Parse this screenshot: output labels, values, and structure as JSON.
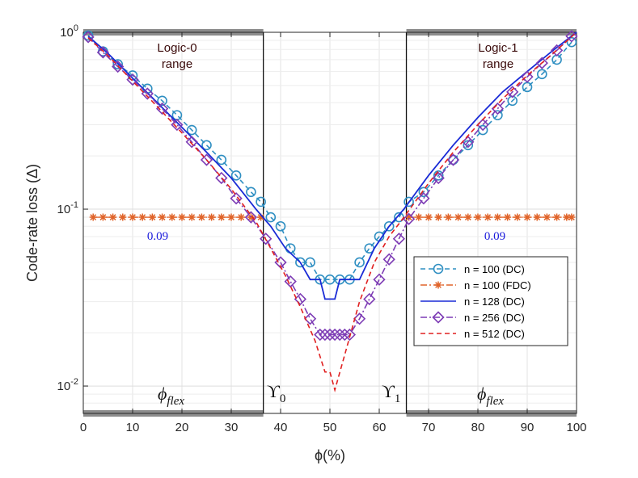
{
  "chart_data": {
    "type": "line",
    "xlabel": "ϕ(%)",
    "ylabel": "Code-rate loss (Δ)",
    "xlim": [
      0,
      100
    ],
    "ylim": [
      0.007,
      1
    ],
    "yscale": "log",
    "x_ticks": [
      0,
      10,
      20,
      30,
      40,
      50,
      60,
      70,
      80,
      90,
      100
    ],
    "y_ticks": [
      {
        "value": 1,
        "base": "10",
        "exp": "0"
      },
      {
        "value": 0.1,
        "base": "10",
        "exp": "-1"
      },
      {
        "value": 0.01,
        "base": "10",
        "exp": "-2"
      }
    ],
    "grid": true,
    "legend_position": "right-center",
    "series": [
      {
        "name": "n = 100 (DC)",
        "color": "#2f8fc2",
        "dash": "dashed",
        "marker": "circle",
        "x": [
          1,
          4,
          7,
          10,
          13,
          16,
          19,
          22,
          25,
          28,
          31,
          34,
          36,
          38,
          40,
          42,
          44,
          46,
          48,
          50,
          52,
          54,
          56,
          58,
          60,
          62,
          64,
          66,
          69,
          72,
          75,
          78,
          81,
          84,
          87,
          90,
          93,
          96,
          99
        ],
        "y": [
          0.96,
          0.78,
          0.66,
          0.57,
          0.48,
          0.41,
          0.34,
          0.28,
          0.23,
          0.19,
          0.155,
          0.125,
          0.11,
          0.09,
          0.08,
          0.06,
          0.05,
          0.05,
          0.04,
          0.04,
          0.04,
          0.04,
          0.05,
          0.06,
          0.07,
          0.08,
          0.09,
          0.11,
          0.125,
          0.155,
          0.19,
          0.23,
          0.28,
          0.34,
          0.41,
          0.49,
          0.58,
          0.7,
          0.88
        ]
      },
      {
        "name": "n = 100 (FDC)",
        "color": "#e0642a",
        "dash": "dashdot",
        "marker": "star",
        "x": [
          2,
          4,
          6,
          8,
          10,
          12,
          14,
          16,
          18,
          20,
          22,
          24,
          26,
          28,
          30,
          32,
          34,
          36,
          66,
          68,
          70,
          72,
          74,
          76,
          78,
          80,
          82,
          84,
          86,
          88,
          90,
          92,
          94,
          96,
          98,
          99
        ],
        "y": [
          0.09,
          0.09,
          0.09,
          0.09,
          0.09,
          0.09,
          0.09,
          0.09,
          0.09,
          0.09,
          0.09,
          0.09,
          0.09,
          0.09,
          0.09,
          0.09,
          0.09,
          0.09,
          0.09,
          0.09,
          0.09,
          0.09,
          0.09,
          0.09,
          0.09,
          0.09,
          0.09,
          0.09,
          0.09,
          0.09,
          0.09,
          0.09,
          0.09,
          0.09,
          0.09,
          0.09
        ]
      },
      {
        "name": "n = 128 (DC)",
        "color": "#1a2bd6",
        "dash": "solid",
        "marker": "none",
        "x": [
          1,
          5,
          10,
          15,
          20,
          25,
          30,
          35,
          38,
          41,
          44,
          46,
          48,
          49,
          51,
          52,
          54,
          56,
          59,
          62,
          65,
          70,
          75,
          80,
          85,
          90,
          95,
          100
        ],
        "y": [
          0.95,
          0.76,
          0.55,
          0.4,
          0.29,
          0.21,
          0.15,
          0.1,
          0.08,
          0.06,
          0.05,
          0.04,
          0.04,
          0.031,
          0.031,
          0.04,
          0.04,
          0.04,
          0.06,
          0.08,
          0.1,
          0.155,
          0.23,
          0.33,
          0.46,
          0.6,
          0.78,
          1.0
        ]
      },
      {
        "name": "n = 256 (DC)",
        "color": "#7d3cb5",
        "dash": "dashdot",
        "marker": "diamond",
        "x": [
          1,
          4,
          7,
          10,
          13,
          16,
          19,
          22,
          25,
          28,
          31,
          34,
          37,
          40,
          42,
          44,
          46,
          48,
          49,
          50,
          51,
          52,
          53,
          54,
          56,
          58,
          60,
          62,
          64,
          66,
          69,
          72,
          75,
          78,
          81,
          84,
          87,
          90,
          93,
          96,
          99
        ],
        "y": [
          0.94,
          0.77,
          0.64,
          0.54,
          0.45,
          0.37,
          0.3,
          0.24,
          0.19,
          0.15,
          0.115,
          0.09,
          0.068,
          0.05,
          0.039,
          0.031,
          0.024,
          0.0195,
          0.0195,
          0.0195,
          0.0195,
          0.0195,
          0.0195,
          0.0195,
          0.024,
          0.031,
          0.04,
          0.052,
          0.068,
          0.088,
          0.115,
          0.15,
          0.19,
          0.24,
          0.3,
          0.37,
          0.46,
          0.56,
          0.67,
          0.79,
          0.95
        ]
      },
      {
        "name": "n = 512 (DC)",
        "color": "#e02020",
        "dash": "dashed",
        "marker": "none",
        "x": [
          1,
          5,
          10,
          15,
          20,
          25,
          30,
          35,
          38,
          41,
          44,
          47,
          49,
          50,
          51,
          53,
          56,
          59,
          62,
          65,
          70,
          75,
          80,
          85,
          90,
          95,
          100
        ],
        "y": [
          0.93,
          0.74,
          0.53,
          0.38,
          0.27,
          0.19,
          0.13,
          0.085,
          0.06,
          0.042,
          0.028,
          0.018,
          0.012,
          0.012,
          0.0095,
          0.015,
          0.03,
          0.05,
          0.07,
          0.09,
          0.14,
          0.21,
          0.3,
          0.42,
          0.57,
          0.75,
          1.0
        ]
      }
    ],
    "boundaries": [
      36.5,
      65.5
    ],
    "annotations": {
      "logic0": [
        "Logic-0",
        "range"
      ],
      "logic1": [
        "Logic-1",
        "range"
      ],
      "val_left": "0.09",
      "val_right": "0.09",
      "upsilon0": {
        "base": "ϒ",
        "sub": "0"
      },
      "upsilon1": {
        "base": "ϒ",
        "sub": "1"
      },
      "phi_flex_left": {
        "base": "ϕ",
        "sub": "flex"
      },
      "phi_flex_right": {
        "base": "ϕ",
        "sub": "flex"
      }
    }
  }
}
